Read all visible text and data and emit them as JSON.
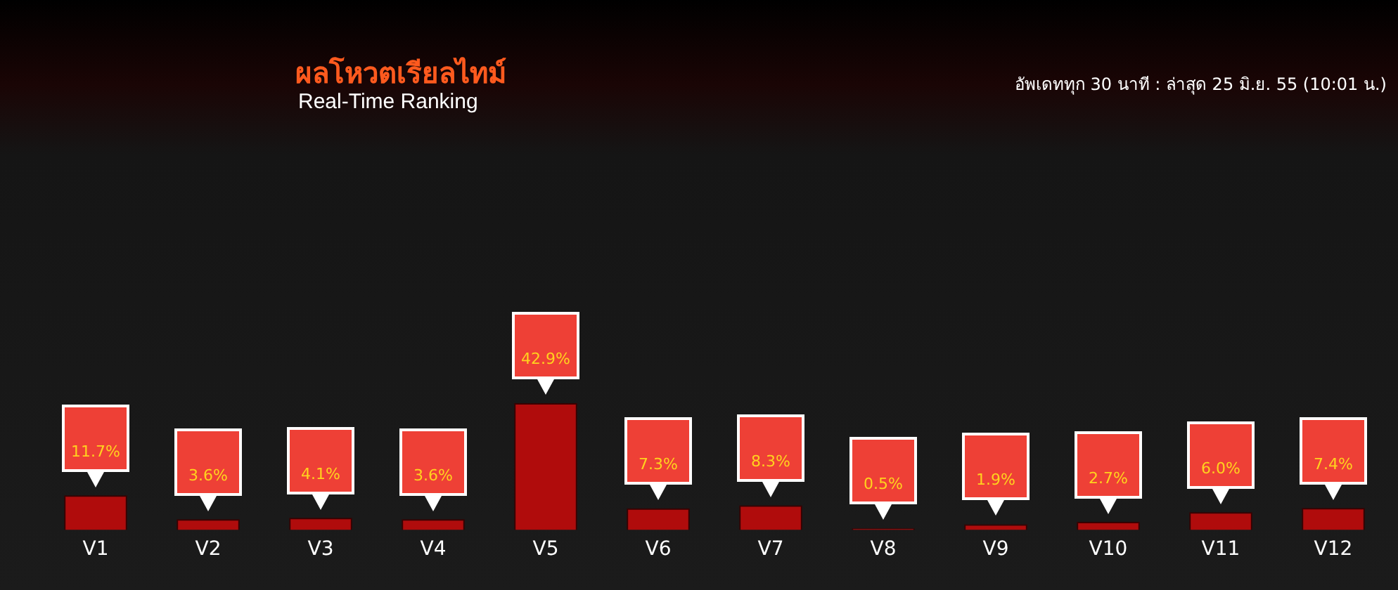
{
  "chart_data": {
    "type": "bar",
    "title": "ผลโหวตเรียลไทม์",
    "subtitle": "Real-Time Ranking",
    "annotations": [
      "อัพเดททุก 30 นาที : ล่าสุด 25 มิ.ย. 55 (10:01 น.)"
    ],
    "categories": [
      "V1",
      "V2",
      "V3",
      "V4",
      "V5",
      "V6",
      "V7",
      "V8",
      "V9",
      "V10",
      "V11",
      "V12"
    ],
    "values": [
      11.7,
      3.6,
      4.1,
      3.6,
      42.9,
      7.3,
      8.3,
      0.5,
      1.9,
      2.7,
      6.0,
      7.4
    ],
    "value_labels": [
      "11.7%",
      "3.6%",
      "4.1%",
      "3.6%",
      "42.9%",
      "7.3%",
      "8.3%",
      "0.5%",
      "1.9%",
      "2.7%",
      "6.0%",
      "7.4%"
    ],
    "color": "#b00c0c",
    "legend": false
  }
}
